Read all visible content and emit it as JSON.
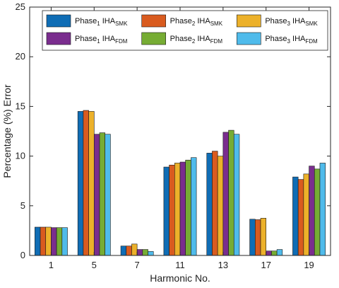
{
  "chart_data": {
    "type": "bar",
    "categories": [
      "1",
      "5",
      "7",
      "11",
      "13",
      "17",
      "19"
    ],
    "xlabel": "Harmonic No.",
    "ylabel": "Percentage (%) Error",
    "ylim": [
      0,
      25
    ],
    "yticks": [
      0,
      5,
      10,
      15,
      20,
      25
    ],
    "grid": false,
    "legend_position": "top",
    "series": [
      {
        "name": "Phase1 IHASMK",
        "label_main": "Phase",
        "label_idx": "1",
        "label_mid": " IHA",
        "label_sub": "SMK",
        "color": "#0f6db5",
        "values": [
          2.85,
          14.5,
          0.95,
          8.9,
          10.3,
          3.65,
          7.9
        ]
      },
      {
        "name": "Phase2 IHASMK",
        "label_main": "Phase",
        "label_idx": "2",
        "label_mid": " IHA",
        "label_sub": "SMK",
        "color": "#d95b1f",
        "values": [
          2.85,
          14.6,
          0.95,
          9.1,
          10.5,
          3.6,
          7.65
        ]
      },
      {
        "name": "Phase3 IHASMK",
        "label_main": "Phase",
        "label_idx": "3",
        "label_mid": " IHA",
        "label_sub": "SMK",
        "color": "#ecb12a",
        "values": [
          2.85,
          14.5,
          1.15,
          9.3,
          10.0,
          3.75,
          8.2
        ]
      },
      {
        "name": "Phase1 IHAFDM",
        "label_main": "Phase",
        "label_idx": "1",
        "label_mid": " IHA",
        "label_sub": "FDM",
        "color": "#7a2d8e",
        "values": [
          2.8,
          12.2,
          0.6,
          9.4,
          12.4,
          0.45,
          9.0
        ]
      },
      {
        "name": "Phase2 IHAFDM",
        "label_main": "Phase",
        "label_idx": "2",
        "label_mid": " IHA",
        "label_sub": "FDM",
        "color": "#76ac34",
        "values": [
          2.8,
          12.35,
          0.6,
          9.6,
          12.6,
          0.45,
          8.7
        ]
      },
      {
        "name": "Phase3 IHAFDM",
        "label_main": "Phase",
        "label_idx": "3",
        "label_mid": " IHA",
        "label_sub": "FDM",
        "color": "#4fbbeb",
        "values": [
          2.8,
          12.2,
          0.4,
          9.85,
          12.2,
          0.6,
          9.3
        ]
      }
    ]
  }
}
